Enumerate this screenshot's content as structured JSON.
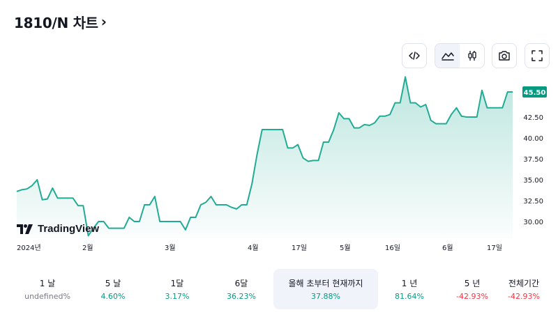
{
  "header": {
    "title": "1810/N 차트",
    "chevron": "›"
  },
  "toolbar": {
    "buttons": [
      {
        "name": "embed-code",
        "icon": "code-icon"
      },
      {
        "name": "line-chart",
        "icon": "area-chart-icon",
        "active": true
      },
      {
        "name": "candle-chart",
        "icon": "candlestick-icon"
      },
      {
        "name": "snapshot",
        "icon": "camera-icon"
      },
      {
        "name": "fullscreen",
        "icon": "fullscreen-icon"
      }
    ]
  },
  "watermark": "TradingView",
  "colors": {
    "line": "#22ab94",
    "fill": "#d6f0ea",
    "price_badge": "#089981",
    "positive": "#089981",
    "negative": "#f23645"
  },
  "chart_data": {
    "type": "area",
    "x_ticks": [
      "2024년",
      "2월",
      "3월",
      "4월",
      "17일",
      "5월",
      "16일",
      "6월",
      "17일"
    ],
    "y_ticks": [
      "30.00",
      "32.50",
      "35.00",
      "37.50",
      "40.00",
      "42.50"
    ],
    "ylim": [
      28.0,
      47.5
    ],
    "last_price": "45.50",
    "values": [
      33.6,
      33.8,
      33.9,
      34.3,
      35.0,
      32.6,
      32.7,
      34.0,
      32.8,
      32.8,
      32.8,
      32.8,
      31.9,
      31.9,
      28.3,
      29.2,
      30.0,
      30.0,
      29.2,
      29.2,
      29.2,
      29.2,
      30.5,
      30.0,
      30.0,
      32.0,
      32.0,
      33.0,
      30.0,
      30.0,
      30.0,
      30.0,
      30.0,
      29.0,
      30.5,
      30.5,
      32.0,
      32.3,
      33.0,
      32.0,
      32.0,
      32.0,
      31.7,
      31.5,
      32.0,
      32.0,
      34.5,
      38.0,
      41.0,
      41.0,
      41.0,
      41.0,
      41.0,
      38.8,
      38.8,
      39.2,
      37.6,
      37.2,
      37.3,
      37.3,
      39.5,
      39.5,
      41.0,
      43.0,
      42.3,
      42.3,
      41.2,
      41.2,
      41.6,
      41.5,
      41.8,
      42.6,
      42.6,
      42.8,
      44.2,
      44.2,
      47.3,
      44.2,
      44.2,
      43.7,
      44.0,
      42.1,
      41.7,
      41.7,
      41.7,
      42.8,
      43.6,
      42.6,
      42.5,
      42.5,
      42.5,
      45.7,
      43.6,
      43.6,
      43.6,
      43.6,
      45.5,
      45.5
    ]
  },
  "periods": [
    {
      "label": "1 날",
      "value": "undefined%",
      "tone": "neu"
    },
    {
      "label": "5 날",
      "value": "4.60%",
      "tone": "pos"
    },
    {
      "label": "1달",
      "value": "3.17%",
      "tone": "pos"
    },
    {
      "label": "6달",
      "value": "36.23%",
      "tone": "pos"
    },
    {
      "label": "올해 초부터 현재까지",
      "value": "37.88%",
      "tone": "pos",
      "active": true
    },
    {
      "label": "1 년",
      "value": "81.64%",
      "tone": "pos"
    },
    {
      "label": "5 년",
      "value": "-42.93%",
      "tone": "neg"
    },
    {
      "label": "전체기간",
      "value": "-42.93%",
      "tone": "neg"
    }
  ]
}
